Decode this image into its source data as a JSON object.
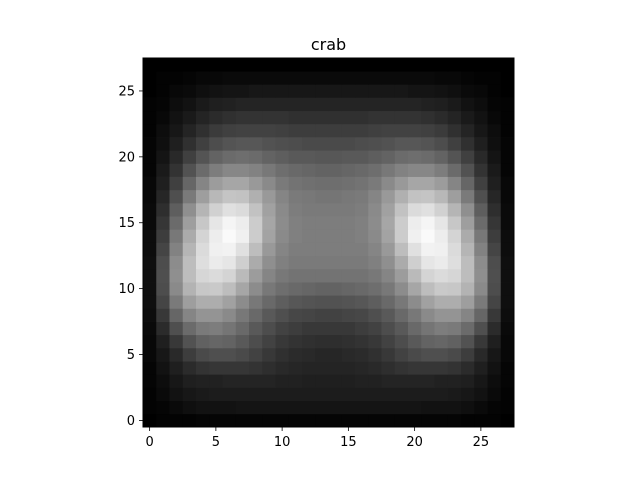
{
  "chart_data": {
    "type": "heatmap",
    "title": "crab",
    "xlabel": "",
    "ylabel": "",
    "colormap": "gray",
    "grid": false,
    "rows": 28,
    "cols": 28,
    "xlim": [
      -0.5,
      27.5
    ],
    "ylim": [
      27.5,
      -0.5
    ],
    "xticks": [
      0,
      5,
      10,
      15,
      20,
      25
    ],
    "yticks": [
      0,
      5,
      10,
      15,
      20,
      25
    ],
    "value_range": [
      0,
      1
    ],
    "values": [
      [
        0.0,
        0.01,
        0.01,
        0.01,
        0.02,
        0.02,
        0.02,
        0.02,
        0.02,
        0.02,
        0.02,
        0.02,
        0.02,
        0.02,
        0.02,
        0.02,
        0.02,
        0.02,
        0.02,
        0.02,
        0.02,
        0.02,
        0.02,
        0.02,
        0.01,
        0.01,
        0.01,
        0.0
      ],
      [
        0.01,
        0.02,
        0.04,
        0.06,
        0.07,
        0.07,
        0.07,
        0.08,
        0.08,
        0.08,
        0.08,
        0.08,
        0.08,
        0.08,
        0.08,
        0.08,
        0.08,
        0.08,
        0.08,
        0.08,
        0.08,
        0.07,
        0.07,
        0.07,
        0.06,
        0.04,
        0.02,
        0.01
      ],
      [
        0.01,
        0.04,
        0.07,
        0.09,
        0.1,
        0.11,
        0.11,
        0.11,
        0.11,
        0.11,
        0.11,
        0.11,
        0.11,
        0.11,
        0.11,
        0.11,
        0.11,
        0.11,
        0.11,
        0.11,
        0.11,
        0.11,
        0.11,
        0.1,
        0.09,
        0.07,
        0.04,
        0.01
      ],
      [
        0.02,
        0.05,
        0.09,
        0.12,
        0.13,
        0.13,
        0.14,
        0.14,
        0.14,
        0.14,
        0.13,
        0.13,
        0.12,
        0.12,
        0.12,
        0.12,
        0.13,
        0.13,
        0.14,
        0.14,
        0.14,
        0.14,
        0.13,
        0.13,
        0.12,
        0.09,
        0.05,
        0.02
      ],
      [
        0.02,
        0.07,
        0.12,
        0.17,
        0.2,
        0.21,
        0.21,
        0.21,
        0.2,
        0.18,
        0.16,
        0.15,
        0.14,
        0.14,
        0.14,
        0.14,
        0.15,
        0.16,
        0.18,
        0.2,
        0.21,
        0.21,
        0.21,
        0.2,
        0.17,
        0.12,
        0.07,
        0.02
      ],
      [
        0.03,
        0.09,
        0.16,
        0.24,
        0.29,
        0.31,
        0.31,
        0.29,
        0.26,
        0.22,
        0.19,
        0.17,
        0.16,
        0.15,
        0.15,
        0.16,
        0.17,
        0.19,
        0.22,
        0.26,
        0.29,
        0.31,
        0.31,
        0.29,
        0.24,
        0.16,
        0.09,
        0.03
      ],
      [
        0.03,
        0.12,
        0.22,
        0.32,
        0.38,
        0.4,
        0.39,
        0.35,
        0.3,
        0.26,
        0.22,
        0.2,
        0.19,
        0.18,
        0.18,
        0.19,
        0.2,
        0.22,
        0.26,
        0.3,
        0.35,
        0.39,
        0.4,
        0.38,
        0.32,
        0.22,
        0.12,
        0.03
      ],
      [
        0.04,
        0.17,
        0.31,
        0.42,
        0.48,
        0.49,
        0.46,
        0.41,
        0.35,
        0.3,
        0.26,
        0.24,
        0.22,
        0.22,
        0.22,
        0.22,
        0.24,
        0.26,
        0.3,
        0.35,
        0.41,
        0.46,
        0.49,
        0.48,
        0.42,
        0.31,
        0.17,
        0.04
      ],
      [
        0.05,
        0.22,
        0.4,
        0.52,
        0.58,
        0.58,
        0.54,
        0.47,
        0.41,
        0.35,
        0.31,
        0.28,
        0.27,
        0.26,
        0.26,
        0.27,
        0.28,
        0.31,
        0.35,
        0.41,
        0.47,
        0.54,
        0.58,
        0.58,
        0.52,
        0.4,
        0.22,
        0.05
      ],
      [
        0.06,
        0.27,
        0.48,
        0.62,
        0.68,
        0.68,
        0.63,
        0.55,
        0.47,
        0.41,
        0.37,
        0.34,
        0.33,
        0.32,
        0.32,
        0.33,
        0.34,
        0.37,
        0.41,
        0.47,
        0.55,
        0.63,
        0.68,
        0.68,
        0.62,
        0.48,
        0.27,
        0.06
      ],
      [
        0.06,
        0.3,
        0.54,
        0.7,
        0.78,
        0.79,
        0.74,
        0.65,
        0.55,
        0.47,
        0.43,
        0.41,
        0.4,
        0.39,
        0.39,
        0.4,
        0.41,
        0.43,
        0.47,
        0.55,
        0.65,
        0.74,
        0.79,
        0.78,
        0.7,
        0.54,
        0.3,
        0.06
      ],
      [
        0.06,
        0.31,
        0.56,
        0.74,
        0.84,
        0.86,
        0.83,
        0.73,
        0.61,
        0.52,
        0.47,
        0.45,
        0.45,
        0.45,
        0.45,
        0.45,
        0.45,
        0.47,
        0.52,
        0.61,
        0.73,
        0.83,
        0.86,
        0.84,
        0.74,
        0.56,
        0.31,
        0.06
      ],
      [
        0.06,
        0.3,
        0.55,
        0.74,
        0.87,
        0.92,
        0.9,
        0.81,
        0.67,
        0.56,
        0.5,
        0.48,
        0.48,
        0.48,
        0.48,
        0.48,
        0.48,
        0.5,
        0.56,
        0.67,
        0.81,
        0.9,
        0.92,
        0.87,
        0.74,
        0.55,
        0.3,
        0.06
      ],
      [
        0.05,
        0.27,
        0.51,
        0.71,
        0.86,
        0.94,
        0.95,
        0.88,
        0.74,
        0.6,
        0.52,
        0.49,
        0.49,
        0.49,
        0.49,
        0.49,
        0.49,
        0.52,
        0.6,
        0.74,
        0.88,
        0.95,
        0.94,
        0.86,
        0.71,
        0.51,
        0.27,
        0.05
      ],
      [
        0.05,
        0.24,
        0.47,
        0.67,
        0.83,
        0.93,
        0.98,
        0.94,
        0.8,
        0.64,
        0.54,
        0.5,
        0.49,
        0.49,
        0.49,
        0.49,
        0.5,
        0.54,
        0.64,
        0.8,
        0.94,
        0.98,
        0.93,
        0.83,
        0.67,
        0.47,
        0.24,
        0.05
      ],
      [
        0.04,
        0.21,
        0.42,
        0.62,
        0.78,
        0.9,
        0.96,
        0.93,
        0.8,
        0.65,
        0.55,
        0.5,
        0.49,
        0.49,
        0.49,
        0.49,
        0.5,
        0.55,
        0.65,
        0.8,
        0.93,
        0.96,
        0.9,
        0.78,
        0.62,
        0.42,
        0.21,
        0.04
      ],
      [
        0.04,
        0.18,
        0.37,
        0.56,
        0.71,
        0.82,
        0.88,
        0.86,
        0.76,
        0.63,
        0.54,
        0.49,
        0.48,
        0.48,
        0.48,
        0.48,
        0.49,
        0.54,
        0.63,
        0.76,
        0.86,
        0.88,
        0.82,
        0.71,
        0.56,
        0.37,
        0.18,
        0.04
      ],
      [
        0.03,
        0.15,
        0.31,
        0.48,
        0.62,
        0.72,
        0.77,
        0.76,
        0.69,
        0.6,
        0.52,
        0.48,
        0.47,
        0.46,
        0.46,
        0.47,
        0.48,
        0.52,
        0.6,
        0.69,
        0.76,
        0.77,
        0.72,
        0.62,
        0.48,
        0.31,
        0.15,
        0.03
      ],
      [
        0.03,
        0.12,
        0.25,
        0.4,
        0.52,
        0.61,
        0.65,
        0.65,
        0.6,
        0.54,
        0.48,
        0.45,
        0.44,
        0.43,
        0.43,
        0.44,
        0.45,
        0.48,
        0.54,
        0.6,
        0.65,
        0.65,
        0.61,
        0.52,
        0.4,
        0.25,
        0.12,
        0.03
      ],
      [
        0.02,
        0.1,
        0.2,
        0.32,
        0.42,
        0.49,
        0.53,
        0.53,
        0.51,
        0.47,
        0.43,
        0.41,
        0.4,
        0.39,
        0.39,
        0.4,
        0.41,
        0.43,
        0.47,
        0.51,
        0.53,
        0.53,
        0.49,
        0.42,
        0.32,
        0.2,
        0.1,
        0.02
      ],
      [
        0.02,
        0.08,
        0.16,
        0.25,
        0.33,
        0.39,
        0.42,
        0.43,
        0.42,
        0.39,
        0.37,
        0.35,
        0.35,
        0.34,
        0.34,
        0.35,
        0.35,
        0.37,
        0.39,
        0.42,
        0.43,
        0.42,
        0.39,
        0.33,
        0.25,
        0.16,
        0.08,
        0.02
      ],
      [
        0.02,
        0.06,
        0.12,
        0.19,
        0.25,
        0.3,
        0.33,
        0.34,
        0.34,
        0.32,
        0.31,
        0.3,
        0.29,
        0.29,
        0.29,
        0.29,
        0.3,
        0.31,
        0.32,
        0.34,
        0.34,
        0.33,
        0.3,
        0.25,
        0.19,
        0.12,
        0.06,
        0.02
      ],
      [
        0.01,
        0.05,
        0.09,
        0.14,
        0.19,
        0.23,
        0.25,
        0.26,
        0.26,
        0.26,
        0.25,
        0.24,
        0.24,
        0.24,
        0.24,
        0.24,
        0.24,
        0.25,
        0.26,
        0.26,
        0.26,
        0.25,
        0.23,
        0.19,
        0.14,
        0.09,
        0.05,
        0.01
      ],
      [
        0.01,
        0.03,
        0.07,
        0.1,
        0.14,
        0.17,
        0.19,
        0.2,
        0.2,
        0.2,
        0.2,
        0.19,
        0.19,
        0.19,
        0.19,
        0.19,
        0.19,
        0.2,
        0.2,
        0.2,
        0.2,
        0.19,
        0.17,
        0.14,
        0.1,
        0.07,
        0.03,
        0.01
      ],
      [
        0.01,
        0.02,
        0.05,
        0.07,
        0.1,
        0.12,
        0.13,
        0.14,
        0.14,
        0.14,
        0.14,
        0.14,
        0.14,
        0.14,
        0.14,
        0.14,
        0.14,
        0.14,
        0.14,
        0.14,
        0.14,
        0.13,
        0.12,
        0.1,
        0.07,
        0.05,
        0.02,
        0.01
      ],
      [
        0.0,
        0.01,
        0.03,
        0.04,
        0.06,
        0.07,
        0.08,
        0.08,
        0.09,
        0.09,
        0.09,
        0.09,
        0.09,
        0.09,
        0.09,
        0.09,
        0.09,
        0.09,
        0.09,
        0.09,
        0.08,
        0.08,
        0.07,
        0.06,
        0.04,
        0.03,
        0.01,
        0.0
      ],
      [
        0.0,
        0.01,
        0.01,
        0.02,
        0.03,
        0.03,
        0.04,
        0.04,
        0.04,
        0.04,
        0.04,
        0.04,
        0.04,
        0.04,
        0.04,
        0.04,
        0.04,
        0.04,
        0.04,
        0.04,
        0.04,
        0.04,
        0.03,
        0.03,
        0.02,
        0.01,
        0.01,
        0.0
      ],
      [
        0.0,
        0.0,
        0.0,
        0.0,
        0.0,
        0.0,
        0.0,
        0.0,
        0.0,
        0.0,
        0.0,
        0.0,
        0.0,
        0.0,
        0.0,
        0.0,
        0.0,
        0.0,
        0.0,
        0.0,
        0.0,
        0.0,
        0.0,
        0.0,
        0.0,
        0.0,
        0.0,
        0.0
      ]
    ]
  }
}
